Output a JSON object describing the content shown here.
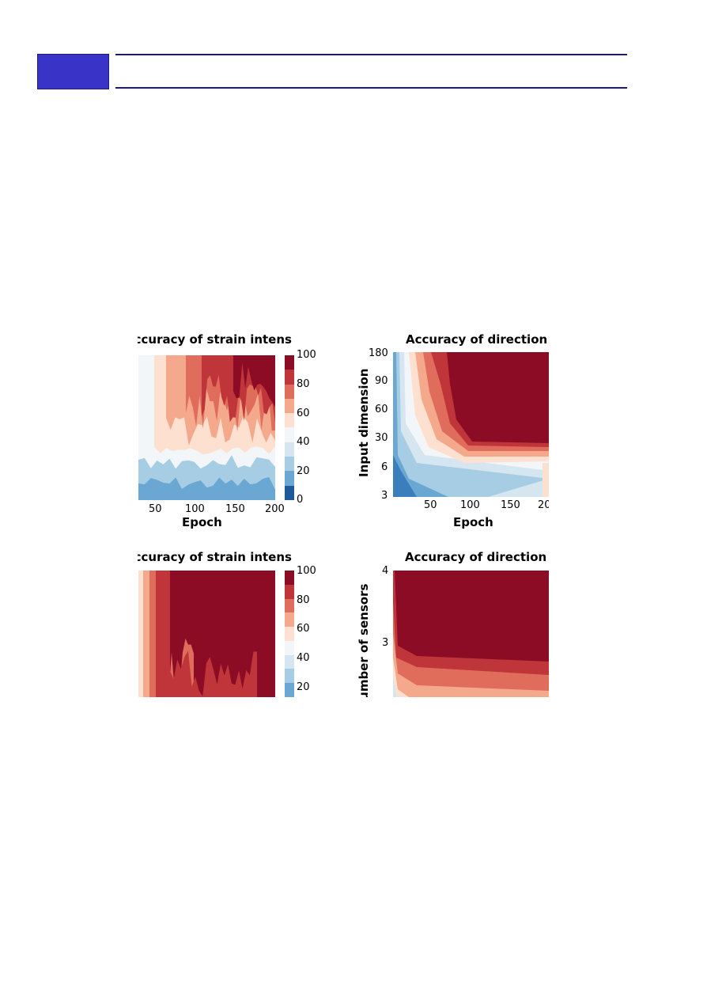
{
  "chart_data": [
    {
      "type": "heatmap",
      "title": "Accuracy of strain intensity",
      "xlabel": "Epoch",
      "ylabel": "",
      "x_ticks": [
        "50",
        "100",
        "150",
        "200"
      ],
      "colorbar_ticks": [
        "100",
        "80",
        "60",
        "40",
        "20",
        "0"
      ],
      "colorbar_range": [
        0,
        100
      ]
    },
    {
      "type": "heatmap",
      "title": "Accuracy of direction",
      "xlabel": "Epoch",
      "ylabel": "Input dimension",
      "x_ticks": [
        "50",
        "100",
        "150",
        "20"
      ],
      "y_ticks": [
        "180",
        "90",
        "60",
        "30",
        "6",
        "3"
      ]
    },
    {
      "type": "heatmap",
      "title": "Accuracy of strain intensity",
      "xlabel": "",
      "ylabel": "",
      "colorbar_ticks": [
        "100",
        "80",
        "60",
        "40",
        "20"
      ],
      "colorbar_range": [
        0,
        100
      ]
    },
    {
      "type": "heatmap",
      "title": "Accuracy of direction",
      "xlabel": "",
      "ylabel": "lumber of sensors",
      "y_ticks": [
        "4",
        "3"
      ]
    }
  ],
  "colors": {
    "header_block": "#3a33c8",
    "header_line": "#1e1a66",
    "c100": "#8b0c24",
    "c90": "#c0353a",
    "c80": "#e06c5c",
    "c70": "#f4a98c",
    "c60": "#fde0cf",
    "c50": "#f3f6f8",
    "c40": "#d6e6f1",
    "c30": "#a6cde4",
    "c20": "#6aa7d2",
    "c10": "#3a7fbc",
    "c0": "#1e5a9a"
  }
}
